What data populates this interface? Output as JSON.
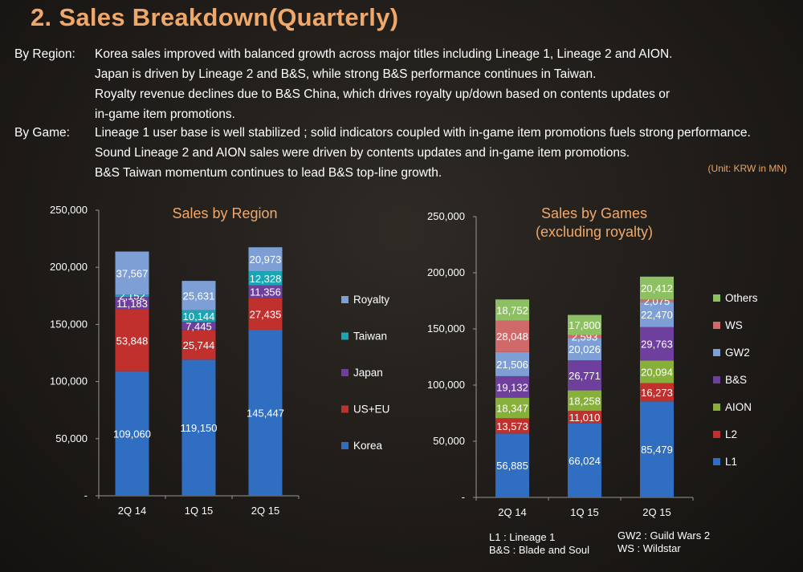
{
  "title": "2. Sales Breakdown(Quarterly)",
  "commentary": {
    "region_label": "By Region:",
    "region_lines": [
      "Korea sales improved with balanced growth across major titles including Lineage 1, Lineage 2 and AION.",
      "Japan is driven by Lineage 2 and B&S, while strong B&S performance continues in Taiwan.",
      "Royalty revenue declines due to B&S China, which drives royalty up/down based on contents updates or",
      "in-game item promotions."
    ],
    "game_label": "By Game:",
    "game_lines": [
      "Lineage 1 user base is well stabilized ; solid indicators coupled with in-game item promotions fuels strong performance.",
      "Sound Lineage 2 and AION sales were driven by contents updates and in-game item promotions.",
      "B&S Taiwan momentum continues to lead B&S top-line growth."
    ]
  },
  "unit_note": "(Unit: KRW in MN)",
  "footnotes": {
    "left1": "L1 : Lineage 1",
    "left2": "B&S : Blade and Soul",
    "right1": "GW2 : Guild Wars 2",
    "right2": "WS : Wildstar"
  },
  "colors": {
    "Korea": "#2f6ec0",
    "US+EU": "#c0302d",
    "Japan": "#6f3f9e",
    "Taiwan": "#1aa5b5",
    "Royalty": "#7d9fd6",
    "L1": "#2f6ec0",
    "L2": "#c0302d",
    "AION": "#86b03a",
    "B&S": "#6f3f9e",
    "GW2": "#7d9fd6",
    "WS": "#d06a6a",
    "Others": "#8dc063"
  },
  "chart_data": [
    {
      "type": "bar",
      "stacked": true,
      "title": "Sales by Region",
      "categories": [
        "2Q 14",
        "1Q 15",
        "2Q 15"
      ],
      "ylim": [
        0,
        250000
      ],
      "yticks": [
        "-",
        "50,000",
        "100,000",
        "150,000",
        "200,000",
        "250,000"
      ],
      "legend_position": "right",
      "series": [
        {
          "name": "Korea",
          "values": [
            109060,
            119150,
            145447
          ],
          "labels": [
            "109,060",
            "119,150",
            "145,447"
          ]
        },
        {
          "name": "US+EU",
          "values": [
            53848,
            25744,
            27435
          ],
          "labels": [
            "53,848",
            "25,744",
            "27,435"
          ]
        },
        {
          "name": "Japan",
          "values": [
            11183,
            7445,
            11356
          ],
          "labels": [
            "11,183",
            "7,445",
            "11,356"
          ]
        },
        {
          "name": "Taiwan",
          "values": [
            2152,
            10144,
            12328
          ],
          "labels": [
            "2,152",
            "10,144",
            "12,328"
          ]
        },
        {
          "name": "Royalty",
          "values": [
            37567,
            25631,
            20973
          ],
          "labels": [
            "37,567",
            "25,631",
            "20,973"
          ]
        }
      ]
    },
    {
      "type": "bar",
      "stacked": true,
      "title": "Sales by Games",
      "subtitle": "(excluding royalty)",
      "categories": [
        "2Q 14",
        "1Q 15",
        "2Q 15"
      ],
      "ylim": [
        0,
        250000
      ],
      "yticks": [
        "-",
        "50,000",
        "100,000",
        "150,000",
        "200,000",
        "250,000"
      ],
      "legend_position": "right",
      "series": [
        {
          "name": "L1",
          "values": [
            56885,
            66024,
            85479
          ],
          "labels": [
            "56,885",
            "66,024",
            "85,479"
          ]
        },
        {
          "name": "L2",
          "values": [
            13573,
            11010,
            16273
          ],
          "labels": [
            "13,573",
            "11,010",
            "16,273"
          ]
        },
        {
          "name": "AION",
          "values": [
            18347,
            18258,
            20094
          ],
          "labels": [
            "18,347",
            "18,258",
            "20,094"
          ]
        },
        {
          "name": "B&S",
          "values": [
            19132,
            26771,
            29763
          ],
          "labels": [
            "19,132",
            "26,771",
            "29,763"
          ]
        },
        {
          "name": "GW2",
          "values": [
            21506,
            20026,
            22470
          ],
          "labels": [
            "21,506",
            "20,026",
            "22,470"
          ]
        },
        {
          "name": "WS",
          "values": [
            28048,
            2593,
            2075
          ],
          "labels": [
            "28,048",
            "2,593",
            "2,075"
          ]
        },
        {
          "name": "Others",
          "values": [
            18752,
            17800,
            20412
          ],
          "labels": [
            "18,752",
            "17,800",
            "20,412"
          ]
        }
      ]
    }
  ]
}
